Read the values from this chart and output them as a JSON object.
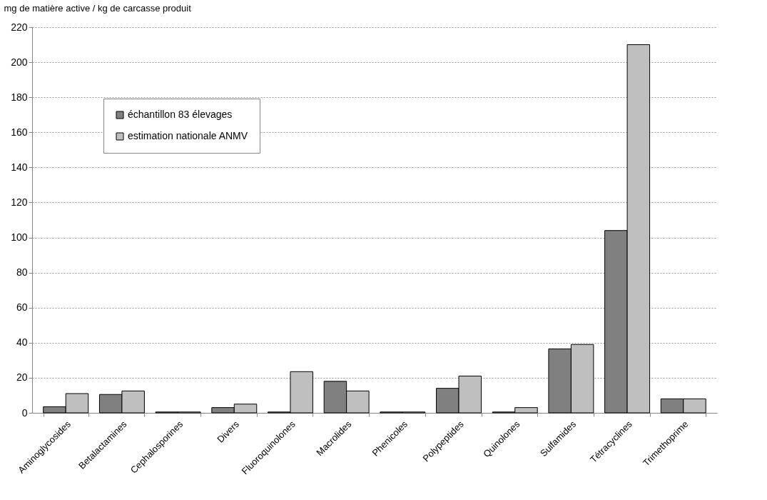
{
  "chart_data": {
    "type": "bar",
    "ylabel": "mg de matière active / kg de carcasse produit",
    "categories": [
      "Aminoglycosides",
      "Betalactamines",
      "Cephalosporines",
      "Divers",
      "Fluoroquinolones",
      "Macrolides",
      "Phenicoles",
      "Polypeptides",
      "Quinolones",
      "Sulfamides",
      "Tétracyclines",
      "Trimethoprime"
    ],
    "series": [
      {
        "name": "échantillon 83 élevages",
        "color": "#808080",
        "values": [
          3.5,
          10.5,
          0.5,
          3,
          0.5,
          18,
          0.5,
          14,
          0.5,
          36.5,
          104,
          8
        ]
      },
      {
        "name": "estimation nationale ANMV",
        "color": "#bfbfbf",
        "values": [
          11,
          12.5,
          0.5,
          5,
          23.5,
          12.5,
          0.5,
          21,
          3,
          39,
          210,
          8
        ]
      }
    ],
    "ylim": [
      0,
      220
    ],
    "yticks": [
      0,
      20,
      40,
      60,
      80,
      100,
      120,
      140,
      160,
      180,
      200,
      220
    ],
    "grid": "y",
    "legend": "top left"
  }
}
